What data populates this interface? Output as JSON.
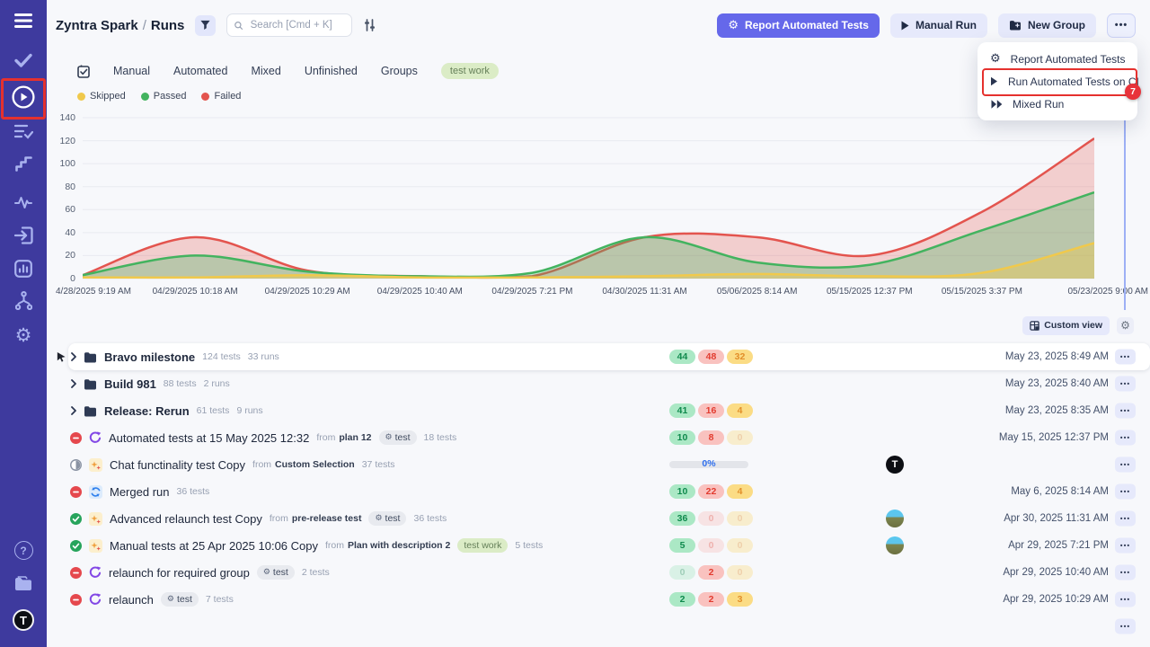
{
  "header": {
    "project": "Zyntra Spark",
    "separator": "/",
    "section": "Runs",
    "search_placeholder": "Search [Cmd + K]",
    "buttons": {
      "report": "Report Automated Tests",
      "manual_run": "Manual Run",
      "new_group": "New Group",
      "more": "•••"
    }
  },
  "menu": {
    "items": [
      {
        "label": "Report Automated Tests",
        "icon": "bot-icon",
        "annotated": false
      },
      {
        "label": "Run Automated Tests on CI",
        "icon": "play-icon",
        "annotated": true
      },
      {
        "label": "Mixed Run",
        "icon": "fast-forward-icon",
        "annotated": false
      }
    ],
    "annotation_badge": "7"
  },
  "tabs": [
    "Manual",
    "Automated",
    "Mixed",
    "Unfinished",
    "Groups"
  ],
  "filter_tag": "test work",
  "chart_data": {
    "type": "area",
    "title": "",
    "x": [
      "4/28/2025 9:19 AM",
      "04/29/2025 10:18 AM",
      "04/29/2025 10:29 AM",
      "04/29/2025 10:40 AM",
      "04/29/2025 7:21 PM",
      "04/30/2025 11:31 AM",
      "05/06/2025 8:14 AM",
      "05/15/2025 12:37 PM",
      "05/15/2025 3:37 PM",
      "05/23/2025 9:00 AM"
    ],
    "series": [
      {
        "name": "Skipped",
        "color": "#f0c94c",
        "fill_opacity": 0.4,
        "values": [
          1,
          1,
          3,
          1,
          1,
          2,
          4,
          2,
          5,
          31
        ]
      },
      {
        "name": "Passed",
        "color": "#43b35f",
        "fill_opacity": 0.32,
        "values": [
          3,
          20,
          6,
          2,
          5,
          36,
          14,
          12,
          42,
          75
        ]
      },
      {
        "name": "Failed",
        "color": "#e3544e",
        "fill_opacity": 0.26,
        "values": [
          3,
          36,
          7,
          2,
          2,
          36,
          36,
          20,
          58,
          122
        ]
      }
    ],
    "ylim": [
      0,
      140
    ],
    "yticks": [
      0,
      20,
      40,
      60,
      80,
      100,
      120,
      140
    ],
    "grid": true,
    "legend_position": "top-left"
  },
  "toolbar": {
    "custom_view": "Custom view"
  },
  "rows": [
    {
      "type": "group",
      "pointer": true,
      "highlighted": true,
      "title": "Bravo milestone",
      "tests": "124 tests",
      "runs": "33 runs",
      "badges": {
        "passed": 44,
        "failed": 48,
        "skipped": 32
      },
      "date": "May 23, 2025 8:49 AM"
    },
    {
      "type": "group",
      "title": "Build 981",
      "tests": "88 tests",
      "runs": "2 runs",
      "date": "May 23, 2025 8:40 AM"
    },
    {
      "type": "group",
      "title": "Release: Rerun",
      "tests": "61 tests",
      "runs": "9 runs",
      "badges": {
        "passed": 41,
        "failed": 16,
        "skipped": 4
      },
      "date": "May 23, 2025 8:35 AM"
    },
    {
      "type": "run",
      "status": "failed",
      "icon": "automated",
      "title": "Automated tests at 15 May 2025 12:32",
      "from": "plan 12",
      "tag": {
        "label": "test",
        "style": "gray",
        "gear": true
      },
      "tests": "18 tests",
      "badges": {
        "passed": 10,
        "failed": 8,
        "skipped": 0
      },
      "date": "May 15, 2025 12:37 PM"
    },
    {
      "type": "run",
      "status": "pending",
      "icon": "manual",
      "title": "Chat functinality test Copy",
      "from": "Custom Selection",
      "tests": "37 tests",
      "progress": "0%",
      "avatar": "T",
      "date": ""
    },
    {
      "type": "run",
      "status": "failed",
      "icon": "merged",
      "title": "Merged run",
      "tests": "36 tests",
      "badges": {
        "passed": 10,
        "failed": 22,
        "skipped": 4
      },
      "date": "May 6, 2025 8:14 AM"
    },
    {
      "type": "run",
      "status": "passed",
      "icon": "manual",
      "title": "Advanced relaunch test Copy",
      "from": "pre-release test",
      "tag": {
        "label": "test",
        "style": "gray",
        "gear": true
      },
      "tests": "36 tests",
      "badges": {
        "passed": 36,
        "failed": 0,
        "skipped": 0
      },
      "avatar": "photo",
      "date": "Apr 30, 2025 11:31 AM"
    },
    {
      "type": "run",
      "status": "passed",
      "icon": "manual",
      "title": "Manual tests at 25 Apr 2025 10:06 Copy",
      "from": "Plan with description 2",
      "tag": {
        "label": "test work",
        "style": "green",
        "gear": false
      },
      "tests": "5 tests",
      "badges": {
        "passed": 5,
        "failed": 0,
        "skipped": 0
      },
      "avatar": "photo",
      "date": "Apr 29, 2025 7:21 PM"
    },
    {
      "type": "run",
      "status": "failed",
      "icon": "automated",
      "title": "relaunch for required group",
      "tag": {
        "label": "test",
        "style": "gray",
        "gear": true
      },
      "tests": "2 tests",
      "badges": {
        "passed": 0,
        "failed": 2,
        "skipped": 0
      },
      "date": "Apr 29, 2025 10:40 AM"
    },
    {
      "type": "run",
      "status": "failed",
      "icon": "automated",
      "title": "relaunch",
      "tag": {
        "label": "test",
        "style": "gray",
        "gear": true
      },
      "tests": "7 tests",
      "badges": {
        "passed": 2,
        "failed": 2,
        "skipped": 3
      },
      "date": "Apr 29, 2025 10:29 AM"
    },
    {
      "type": "partial"
    }
  ],
  "colors": {
    "sidebar": "#3e3a9e",
    "accent": "#6568ea",
    "annotation": "#e5312e",
    "passed": "#27a45c",
    "failed": "#e5484d",
    "skipped": "#e28f2a"
  }
}
